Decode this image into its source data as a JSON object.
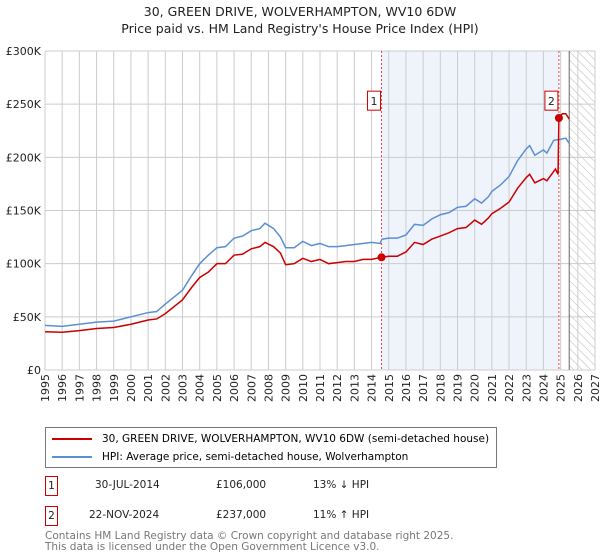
{
  "chart_data": {
    "type": "line",
    "title": "30, GREEN DRIVE, WOLVERHAMPTON, WV10 6DW",
    "subtitle": "Price paid vs. HM Land Registry's House Price Index (HPI)",
    "xlim": [
      1995,
      2027
    ],
    "ylim": [
      0,
      300000
    ],
    "x_ticks": [
      "1995",
      "1996",
      "1997",
      "1998",
      "1999",
      "2000",
      "2001",
      "2002",
      "2003",
      "2004",
      "2005",
      "2006",
      "2007",
      "2008",
      "2009",
      "2010",
      "2011",
      "2012",
      "2013",
      "2014",
      "2015",
      "2016",
      "2017",
      "2018",
      "2019",
      "2020",
      "2021",
      "2022",
      "2023",
      "2024",
      "2025",
      "2026",
      "2027"
    ],
    "y_ticks": [
      {
        "v": 0,
        "label": "£0"
      },
      {
        "v": 50000,
        "label": "£50K"
      },
      {
        "v": 100000,
        "label": "£100K"
      },
      {
        "v": 150000,
        "label": "£150K"
      },
      {
        "v": 200000,
        "label": "£200K"
      },
      {
        "v": 250000,
        "label": "£250K"
      },
      {
        "v": 300000,
        "label": "£300K"
      }
    ],
    "grid": true,
    "shaded_range": [
      2014.58,
      2024.9
    ],
    "forecast_hatch_from": 2025.5,
    "series": [
      {
        "name": "30, GREEN DRIVE, WOLVERHAMPTON, WV10 6DW (semi-detached house)",
        "color": "#cc0000",
        "x": [
          1995,
          1996,
          1997,
          1998,
          1999,
          2000,
          2001,
          2001.5,
          2002,
          2003,
          2003.5,
          2004,
          2004.5,
          2005,
          2005.5,
          2006,
          2006.5,
          2007,
          2007.5,
          2007.8,
          2008.3,
          2008.7,
          2009,
          2009.5,
          2010,
          2010.5,
          2011,
          2011.5,
          2012,
          2012.5,
          2013,
          2013.5,
          2014,
          2014.58,
          2015,
          2015.5,
          2016,
          2016.5,
          2017,
          2017.5,
          2018,
          2018.5,
          2019,
          2019.5,
          2020,
          2020.4,
          2020.8,
          2021,
          2021.5,
          2022,
          2022.5,
          2023,
          2023.2,
          2023.5,
          2024,
          2024.2,
          2024.7,
          2024.85,
          2024.9,
          2025.1,
          2025.3,
          2025.5
        ],
        "y": [
          36000,
          35500,
          37000,
          39000,
          40000,
          43000,
          47000,
          48000,
          53000,
          66000,
          77000,
          87000,
          92000,
          100000,
          100000,
          108000,
          109000,
          114000,
          116000,
          120000,
          116000,
          110000,
          99000,
          100000,
          105000,
          102000,
          104000,
          100000,
          101000,
          102000,
          102000,
          104000,
          104000,
          106000,
          107000,
          107000,
          111000,
          120000,
          118000,
          123000,
          126000,
          129000,
          133000,
          134000,
          141000,
          137000,
          143000,
          147000,
          152000,
          158000,
          171000,
          181000,
          184000,
          176000,
          180000,
          178000,
          189000,
          184000,
          237000,
          241000,
          241000,
          236000
        ]
      },
      {
        "name": "HPI: Average price, semi-detached house, Wolverhampton",
        "color": "#5b8fd4",
        "x": [
          1995,
          1996,
          1997,
          1998,
          1999,
          2000,
          2001,
          2001.5,
          2002,
          2003,
          2003.5,
          2004,
          2004.5,
          2005,
          2005.5,
          2006,
          2006.5,
          2007,
          2007.5,
          2007.8,
          2008.3,
          2008.7,
          2009,
          2009.5,
          2010,
          2010.5,
          2011,
          2011.5,
          2012,
          2012.5,
          2013,
          2013.5,
          2014,
          2014.5,
          2014.6,
          2015,
          2015.5,
          2016,
          2016.5,
          2017,
          2017.5,
          2018,
          2018.5,
          2019,
          2019.5,
          2020,
          2020.4,
          2020.8,
          2021,
          2021.5,
          2022,
          2022.5,
          2023,
          2023.2,
          2023.5,
          2024,
          2024.2,
          2024.6,
          2025,
          2025.3,
          2025.5
        ],
        "y": [
          42000,
          41000,
          43000,
          45000,
          46000,
          50000,
          54000,
          55000,
          62000,
          75000,
          88000,
          100000,
          108000,
          115000,
          116000,
          124000,
          126000,
          131000,
          133000,
          138000,
          133000,
          125000,
          115000,
          115000,
          121000,
          117000,
          119000,
          116000,
          116000,
          117000,
          118000,
          119000,
          120000,
          119000,
          123000,
          124000,
          124000,
          127000,
          137000,
          136000,
          142000,
          146000,
          148000,
          153000,
          154000,
          161000,
          157000,
          163000,
          168000,
          174000,
          182000,
          197000,
          208000,
          211000,
          202000,
          207000,
          204000,
          216000,
          217000,
          218000,
          213000
        ]
      }
    ],
    "annotations": [
      {
        "label": "1",
        "x": 2014.58,
        "y": 106000,
        "date": "30-JUL-2014",
        "price": "£106,000",
        "hpi": "13% ↓ HPI"
      },
      {
        "label": "2",
        "x": 2024.9,
        "y": 237000,
        "date": "22-NOV-2024",
        "price": "£237,000",
        "hpi": "11% ↑ HPI"
      }
    ]
  },
  "footer": {
    "line1": "Contains HM Land Registry data © Crown copyright and database right 2025.",
    "line2": "This data is licensed under the Open Government Licence v3.0."
  }
}
